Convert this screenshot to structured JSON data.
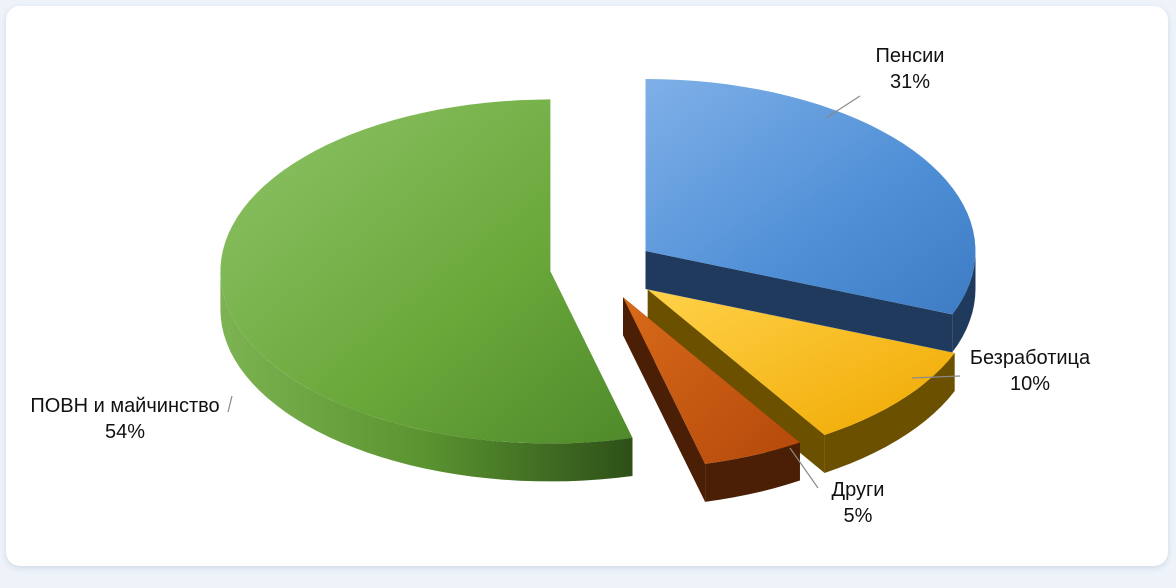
{
  "chart_data": {
    "type": "pie",
    "title": "",
    "categories": [
      "Пенсии",
      "Безработица",
      "Други",
      "ПОВН и майчинство"
    ],
    "values": [
      31,
      10,
      5,
      54
    ],
    "value_labels": [
      "31%",
      "10%",
      "5%",
      "54%"
    ],
    "colors": [
      "#4f8fd6",
      "#f5b800",
      "#c0550e",
      "#6aa83a"
    ],
    "side_colors": [
      "#1f3a5c",
      "#6b5000",
      "#4a1f05",
      "#3f6d22"
    ],
    "exploded": true,
    "three_d": true,
    "legend": "none"
  }
}
